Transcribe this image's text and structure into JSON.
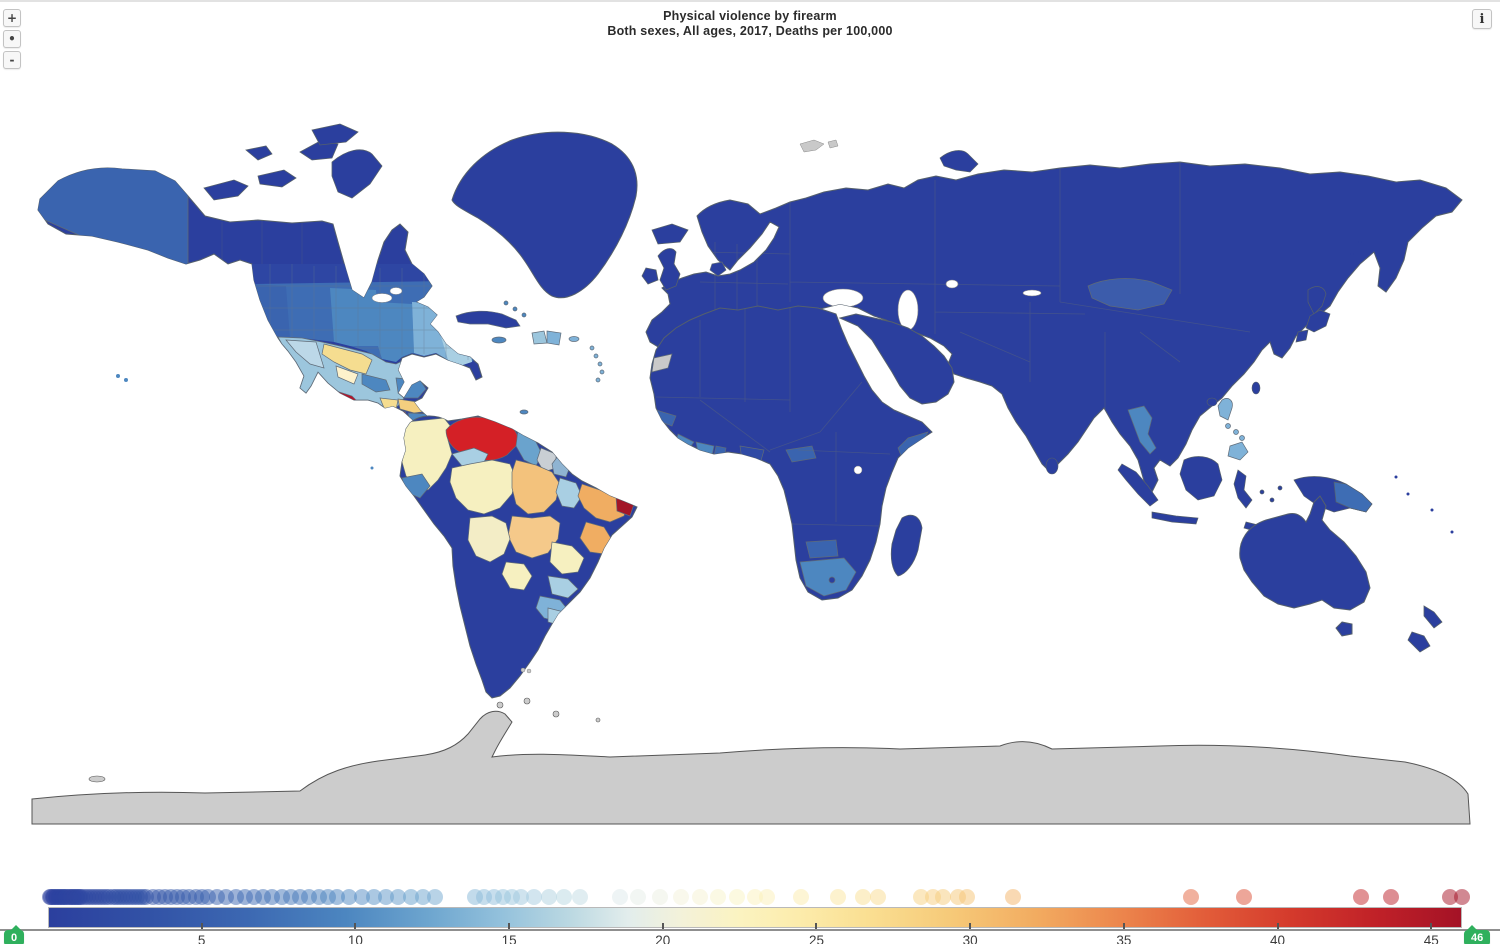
{
  "title": {
    "line1": "Physical violence by firearm",
    "line2": "Both sexes, All ages, 2017, Deaths per 100,000"
  },
  "controls": {
    "zoom_in": "+",
    "zoom_reset": "•",
    "zoom_out": "-",
    "info": "i"
  },
  "legend": {
    "min_label": "0",
    "max_label": "46",
    "min_value": 0,
    "max_value": 46,
    "ticks": [
      5,
      10,
      15,
      20,
      25,
      30,
      35,
      40,
      45
    ],
    "badge_color": "#2fb05d",
    "dot_opacity": 0.5,
    "gradient_stops": [
      [
        0,
        "#2b3f9e"
      ],
      [
        0.07,
        "#3252a6"
      ],
      [
        0.14,
        "#3c68b2"
      ],
      [
        0.21,
        "#4c86c0"
      ],
      [
        0.27,
        "#6ea6cf"
      ],
      [
        0.32,
        "#93c1dc"
      ],
      [
        0.37,
        "#bcd9e2"
      ],
      [
        0.41,
        "#e2edec"
      ],
      [
        0.45,
        "#f4f2d8"
      ],
      [
        0.49,
        "#fbf3c0"
      ],
      [
        0.53,
        "#fcecac"
      ],
      [
        0.58,
        "#fadf92"
      ],
      [
        0.64,
        "#f6c978"
      ],
      [
        0.7,
        "#f2ab60"
      ],
      [
        0.76,
        "#ec854c"
      ],
      [
        0.82,
        "#e25c39"
      ],
      [
        0.88,
        "#d43a2c"
      ],
      [
        0.94,
        "#c02128"
      ],
      [
        1,
        "#a41226"
      ]
    ],
    "dot_values": [
      0.05,
      0.1,
      0.15,
      0.2,
      0.25,
      0.3,
      0.35,
      0.4,
      0.45,
      0.5,
      0.55,
      0.6,
      0.65,
      0.7,
      0.75,
      0.8,
      0.85,
      0.9,
      0.95,
      1.0,
      1.05,
      1.1,
      1.2,
      1.3,
      1.4,
      1.5,
      1.6,
      1.7,
      1.8,
      1.9,
      2.0,
      2.1,
      2.2,
      2.3,
      2.4,
      2.5,
      2.6,
      2.7,
      2.8,
      2.9,
      3.0,
      3.1,
      3.2,
      3.4,
      3.6,
      3.8,
      4.0,
      4.2,
      4.4,
      4.6,
      4.8,
      5.0,
      5.2,
      5.5,
      5.8,
      6.1,
      6.4,
      6.7,
      7.0,
      7.3,
      7.6,
      7.9,
      8.2,
      8.5,
      8.8,
      9.1,
      9.4,
      9.8,
      10.2,
      10.6,
      11.0,
      11.4,
      11.8,
      12.2,
      12.6,
      13.9,
      14.2,
      14.5,
      14.8,
      15.1,
      15.4,
      15.8,
      16.3,
      16.8,
      17.3,
      18.6,
      19.2,
      19.9,
      20.6,
      21.2,
      21.8,
      22.4,
      23.0,
      23.4,
      24.5,
      25.7,
      26.5,
      27.0,
      28.4,
      28.8,
      29.1,
      29.6,
      29.9,
      31.4,
      37.2,
      38.9,
      42.7,
      43.7,
      45.6,
      46
    ]
  },
  "map": {
    "background": "#ffffff",
    "border_color": "#5f6b78",
    "no_data_color": "#cccccc",
    "regions": {
      "canada": "#2b3f9e",
      "alaska": "#3a64af",
      "greenland": "#2b3f9e",
      "iceland": "#2b3f9e",
      "usa_base": "#3e6db4",
      "usa_north": "#2e46a3",
      "usa_west": "#3a64af",
      "usa_central": "#4d87c0",
      "usa_south": "#4d87c0",
      "usa_southeast": "#7fb2d8",
      "usa_southeast_light": "#a9cfe3",
      "usa_northeast": "#4d87c0",
      "mexico_base": "#9cc6dd",
      "mexico_sonora": "#bcd8e8",
      "mexico_yellow": "#f5dd90",
      "mexico_cream": "#fdf2cc",
      "mexico_mid": "#4d87c0",
      "mexico_guerrero": "#b5122a",
      "yucatan": "#4d87c0",
      "guatemala": "#f5dd90",
      "honduras": "#f3cf7f",
      "el_salvador": "#c3172b",
      "nicaragua": "#4d87c0",
      "costa_rica": "#3a64af",
      "panama": "#4d87c0",
      "cuba": "#2b3f9e",
      "jamaica": "#4d87c0",
      "haiti": "#9cc6dd",
      "dominican_republic": "#7fb2d8",
      "puerto_rico": "#7fb2d8",
      "bahamas": "#4d87c0",
      "lesser_antilles": "#7fb2d8",
      "trinidad": "#4d87c0",
      "south_america_base": "#2b3f9e",
      "venezuela": "#d42026",
      "colombia": "#f6f0c0",
      "guyana": "#6aa3cd",
      "suriname": "#c9cfd4",
      "french_guiana": "#8fb4d2",
      "ecuador": "#4d87c0",
      "brazil_roraima": "#a9cfe3",
      "brazil_amazonas": "#f6f0c0",
      "brazil_para": "#f3c27c",
      "brazil_maranhao": "#a9cfe3",
      "brazil_ne": "#f0ad62",
      "brazil_ne_dark": "#a21528",
      "brazil_central": "#f5c98a",
      "brazil_bahia": "#f0ad62",
      "brazil_goias": "#f6f0c0",
      "brazil_saopaulo": "#a9cfe3",
      "brazil_south": "#7fb2d8",
      "bolivia": "#f3edc6",
      "paraguay": "#f6f0c0",
      "uruguay": "#a9cfe3",
      "eurasia_base": "#2b3f9e",
      "europe_base": "#2b3f9e",
      "africa_base": "#2b3f9e",
      "arabia": "#2b3f9e",
      "western_sahara": "#c9c9c9",
      "senegal": "#3a64af",
      "sierra_leone": "#4d87c0",
      "ivory_coast": "#4d87c0",
      "ghana": "#3a64af",
      "nigeria": "#2f4aa4",
      "central_african_rep": "#3a64af",
      "somalia": "#3a64af",
      "south_africa": "#4d87c0",
      "botswana": "#3a64af",
      "lesotho": "#2b3f9e",
      "madagascar": "#2b3f9e",
      "mongolia": "#3c5cab",
      "thailand": "#4d87c0",
      "philippines": "#7fb2d8",
      "indonesia": "#2b3f9e",
      "new_guinea": "#2b3f9e",
      "new_guinea_east": "#3e6db4",
      "japan": "#2b3f9e",
      "australia": "#2b3f9e",
      "new_zealand": "#2b3f9e",
      "sri_lanka": "#2b3f9e",
      "pacific_islands": "#2b3f9e",
      "hawaii": "#4d87c0",
      "antarctica": "#cccccc",
      "svalbard": "#c9c9c9",
      "falklands": "#c9c9c9"
    }
  }
}
